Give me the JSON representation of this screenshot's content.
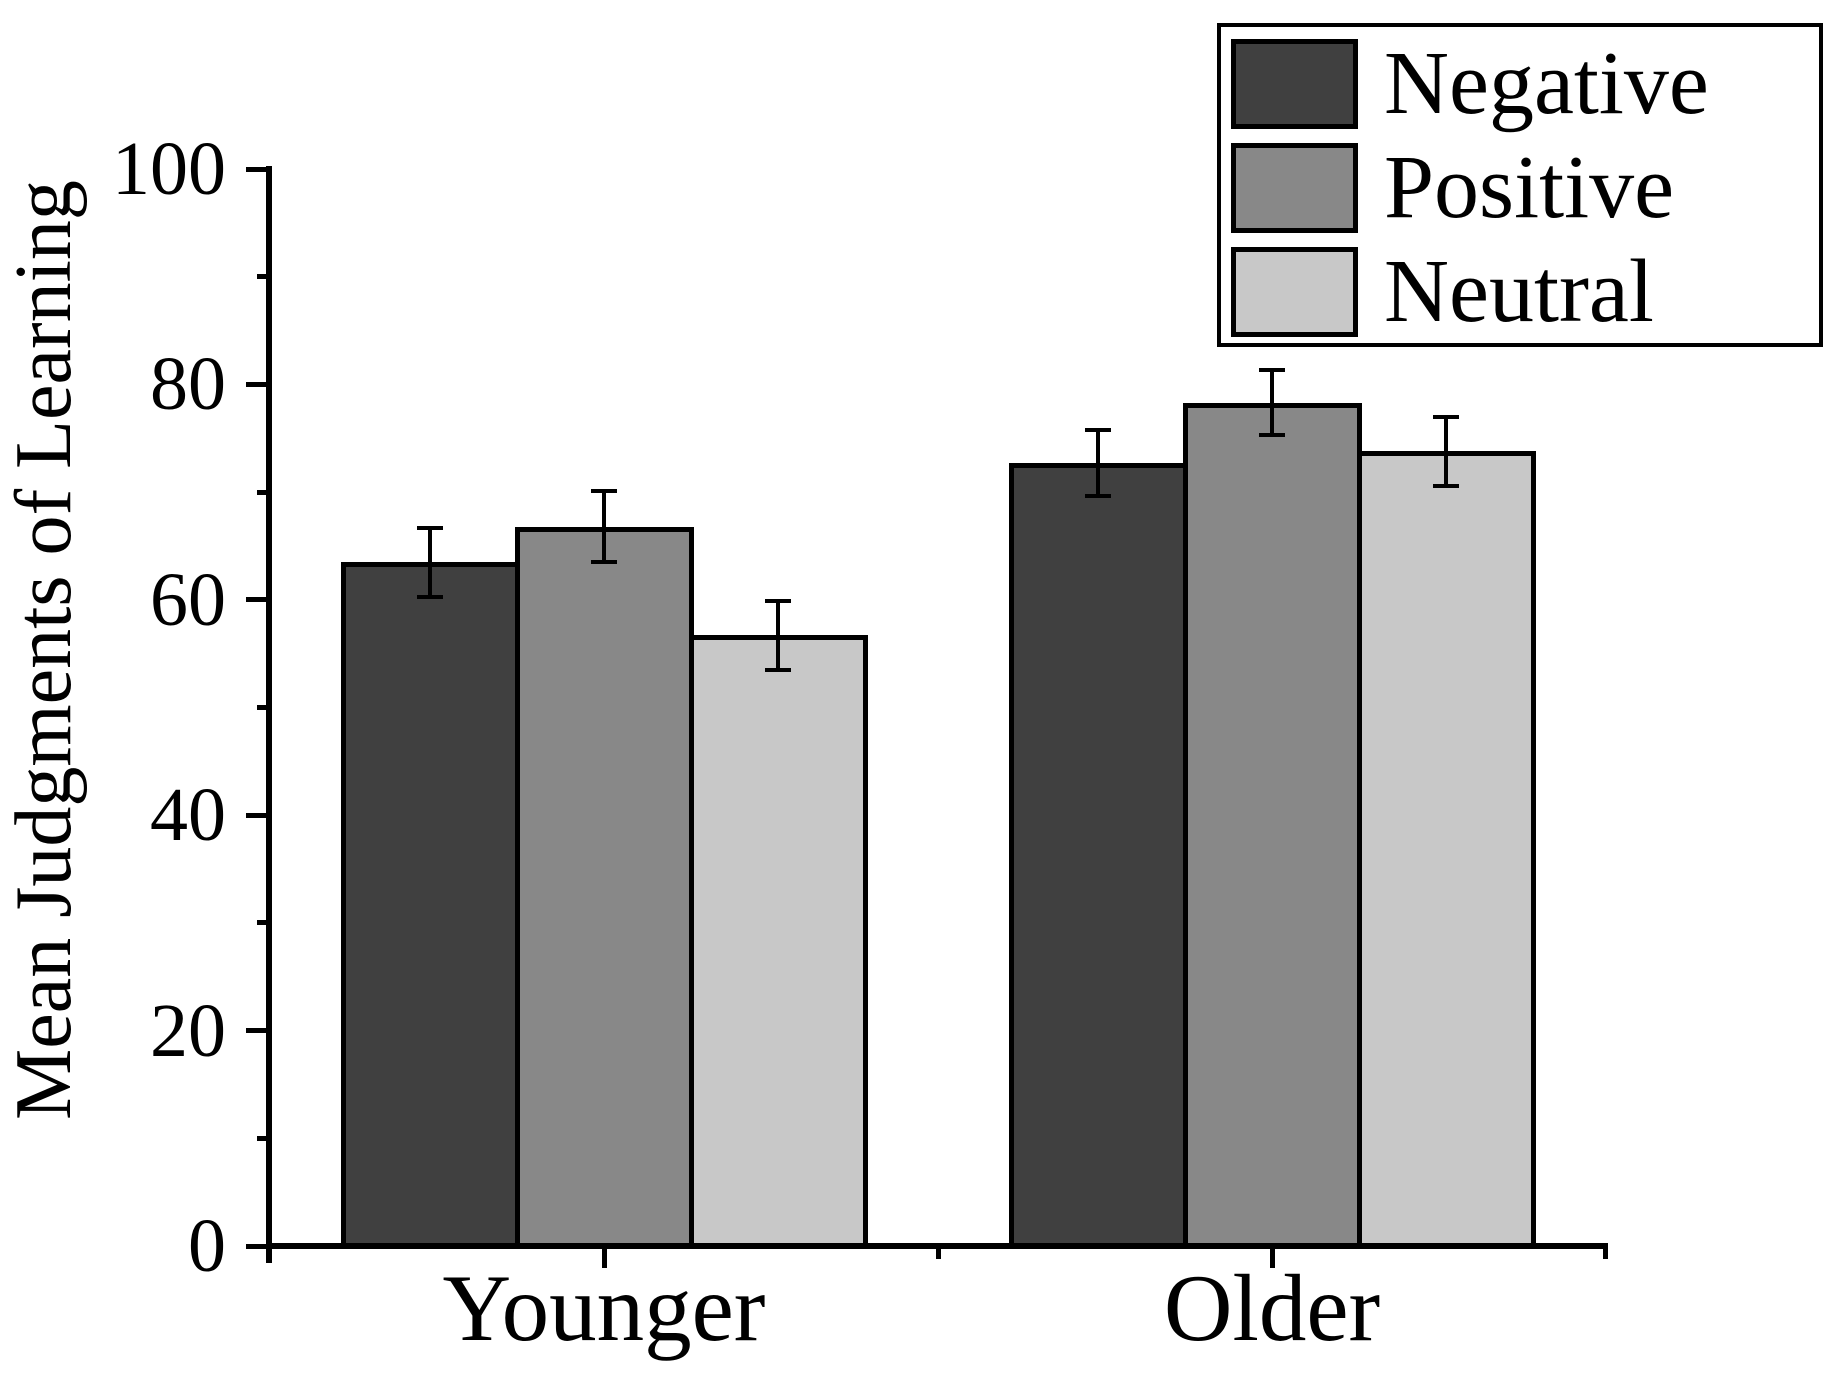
{
  "chart_data": {
    "type": "bar",
    "title": "",
    "categories": [
      "Younger",
      "Older"
    ],
    "series": [
      {
        "name": "Negative",
        "color": "#404040",
        "values": [
          63.5,
          72.7
        ],
        "errors": [
          3.2,
          3.1
        ]
      },
      {
        "name": "Positive",
        "color": "#888888",
        "values": [
          66.8,
          78.3
        ],
        "errors": [
          3.3,
          3.0
        ]
      },
      {
        "name": "Neutral",
        "color": "#c8c8c8",
        "values": [
          56.7,
          73.8
        ],
        "errors": [
          3.2,
          3.2
        ]
      }
    ],
    "xlabel": "",
    "ylabel": "Mean Judgments of Learning",
    "ylim": [
      0,
      100
    ],
    "y_major_ticks": [
      0,
      20,
      40,
      60,
      80,
      100
    ],
    "y_minor_ticks": [
      10,
      30,
      50,
      70,
      90
    ],
    "grid": false,
    "error_bars": true,
    "legend_position": "top-right",
    "axis_color": "#000000",
    "background_color": "#ffffff"
  }
}
